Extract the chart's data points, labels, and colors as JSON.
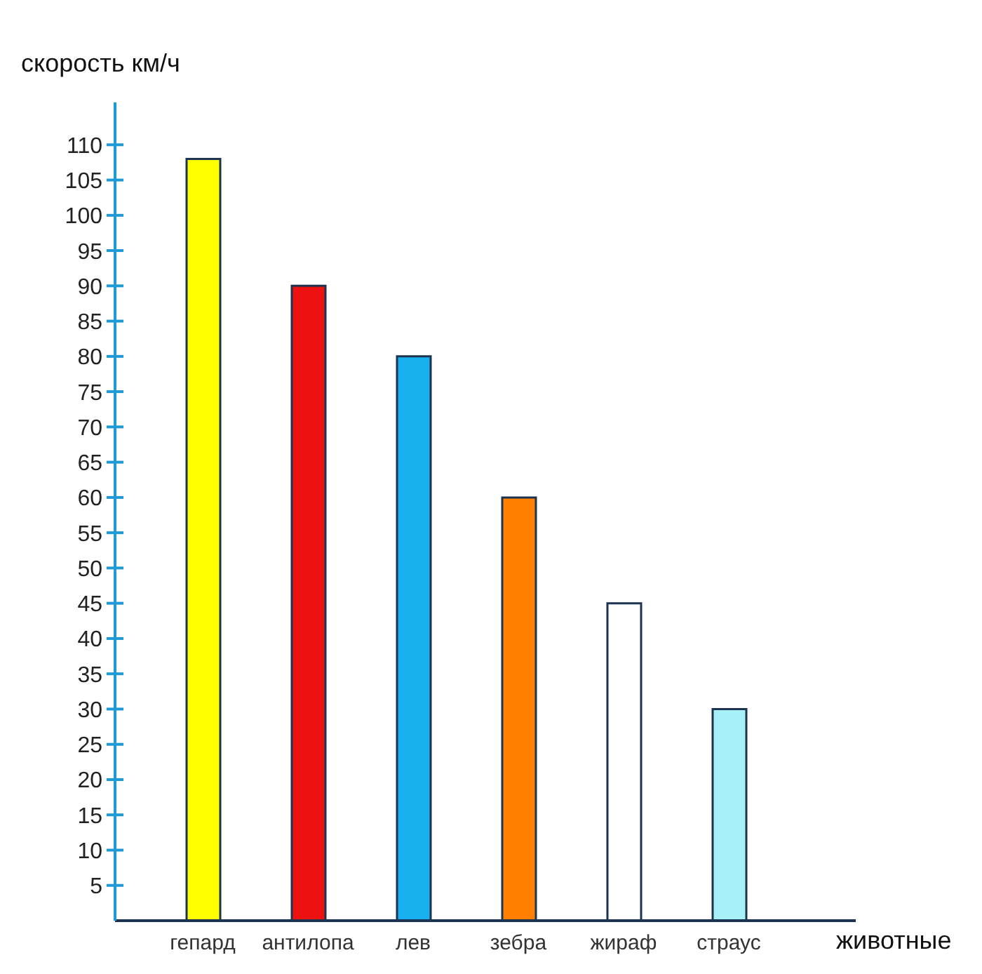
{
  "chart_data": {
    "type": "bar",
    "xlabel": "животные",
    "ylabel": "скорость км/ч",
    "categories": [
      "гепард",
      "антилопа",
      "лев",
      "зебра",
      "жираф",
      "страус"
    ],
    "values": [
      108,
      90,
      80,
      60,
      45,
      30
    ],
    "colors": [
      "#ffff00",
      "#ee1111",
      "#18b0ee",
      "#ff8000",
      "#ffffff",
      "#a8f0f8"
    ],
    "ylim": [
      0,
      116
    ],
    "yticks": [
      5,
      10,
      15,
      20,
      25,
      30,
      35,
      40,
      45,
      50,
      55,
      60,
      65,
      70,
      75,
      80,
      85,
      90,
      95,
      100,
      105,
      110
    ]
  }
}
